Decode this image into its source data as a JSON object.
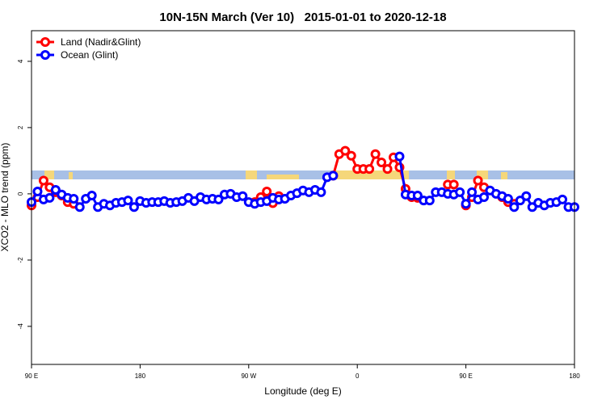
{
  "chart_data": {
    "type": "line",
    "title": "10N-15N March (Ver 10)   2015-01-01 to 2020-12-18",
    "xlabel": "Longitude (deg E)",
    "ylabel": "XCO2 - MLO trend (ppm)",
    "x": [
      90,
      95,
      100,
      105,
      110,
      115,
      120,
      125,
      130,
      135,
      140,
      145,
      150,
      155,
      160,
      165,
      170,
      175,
      180,
      185,
      190,
      195,
      200,
      205,
      210,
      215,
      220,
      225,
      230,
      235,
      240,
      245,
      250,
      255,
      260,
      265,
      270,
      275,
      280,
      285,
      290,
      295,
      300,
      305,
      310,
      315,
      320,
      325,
      330,
      335,
      340,
      345,
      350,
      355,
      360,
      365,
      370,
      375,
      380,
      385,
      390,
      395,
      400,
      405,
      410,
      415,
      420,
      425,
      430,
      435,
      440,
      445,
      450,
      455,
      460,
      465,
      470,
      475,
      480,
      485,
      490,
      495,
      500,
      505,
      510,
      515,
      520,
      525,
      530,
      535,
      540
    ],
    "xlim": [
      90,
      540
    ],
    "xticks": [
      {
        "value": 90,
        "label": "90 E"
      },
      180,
      {
        "value": 270,
        "label": "90 W"
      },
      {
        "value": 360,
        "label": "0"
      },
      {
        "value": 450,
        "label": "90 E"
      },
      {
        "value": 540,
        "label": "180"
      }
    ],
    "ylim": [
      -5.1,
      4.9
    ],
    "yticks": [
      -4,
      -2,
      0,
      2,
      4
    ],
    "legend": "top-left",
    "series": [
      {
        "name": "Land (Nadir&Glint)",
        "color": "#ff0000",
        "values": [
          -0.35,
          -0.1,
          0.4,
          0.2,
          0.05,
          -0.05,
          -0.25,
          -0.3,
          null,
          null,
          null,
          null,
          null,
          null,
          null,
          null,
          null,
          null,
          null,
          null,
          null,
          null,
          null,
          null,
          null,
          null,
          null,
          null,
          null,
          null,
          null,
          null,
          null,
          null,
          null,
          null,
          null,
          -0.25,
          -0.1,
          0.07,
          -0.28,
          -0.07,
          null,
          null,
          null,
          null,
          null,
          null,
          null,
          null,
          0.55,
          1.2,
          1.3,
          1.15,
          0.75,
          0.75,
          0.75,
          1.2,
          0.95,
          0.75,
          1.1,
          0.8,
          0.15,
          -0.1,
          -0.12,
          null,
          null,
          null,
          null,
          0.28,
          0.28,
          null,
          -0.35,
          -0.1,
          0.4,
          0.2,
          null,
          null,
          -0.1,
          -0.25,
          -0.3,
          null,
          null,
          null,
          null,
          null,
          null,
          null,
          null,
          null,
          null
        ]
      },
      {
        "name": "Ocean (Glint)",
        "color": "#0000ff",
        "values": [
          -0.25,
          0.07,
          -0.17,
          -0.12,
          0.12,
          -0.02,
          -0.12,
          -0.15,
          -0.4,
          -0.15,
          -0.05,
          -0.4,
          -0.3,
          -0.35,
          -0.27,
          -0.25,
          -0.2,
          -0.4,
          -0.22,
          -0.27,
          -0.25,
          -0.25,
          -0.22,
          -0.27,
          -0.25,
          -0.22,
          -0.12,
          -0.22,
          -0.1,
          -0.17,
          -0.15,
          -0.17,
          -0.02,
          0,
          -0.1,
          -0.07,
          -0.25,
          -0.3,
          -0.25,
          -0.22,
          -0.12,
          -0.17,
          -0.15,
          -0.05,
          0.02,
          0.1,
          0.05,
          0.12,
          0.05,
          0.5,
          0.55,
          null,
          null,
          null,
          null,
          null,
          null,
          null,
          null,
          null,
          null,
          1.13,
          -0.02,
          -0.05,
          -0.05,
          -0.2,
          -0.2,
          0.05,
          0.05,
          0,
          -0.02,
          0.05,
          -0.3,
          0.05,
          -0.17,
          -0.1,
          0.1,
          0,
          -0.07,
          -0.15,
          -0.4,
          -0.2,
          -0.07,
          -0.4,
          -0.27,
          -0.35,
          -0.27,
          -0.25,
          -0.17,
          -0.4,
          -0.4
        ]
      }
    ]
  }
}
